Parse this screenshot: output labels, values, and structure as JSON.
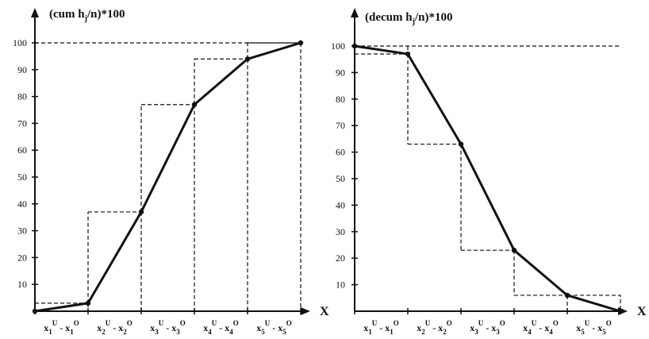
{
  "chart_data": [
    {
      "type": "line",
      "title": "(cum h",
      "title_sub": "j",
      "title_rest": "/n)*100",
      "xlabel": "X",
      "x_tick_labels": [
        {
          "base": "x",
          "sub": "1",
          "sup": "U",
          "sep": " - ",
          "base2": "x",
          "sub2": "1",
          "sup2": "O"
        },
        {
          "base": "x",
          "sub": "2",
          "sup": "U",
          "sep": " - ",
          "base2": "x",
          "sub2": "2",
          "sup2": "O"
        },
        {
          "base": "x",
          "sub": "3",
          "sup": "U",
          "sep": " - ",
          "base2": "x",
          "sub2": "3",
          "sup2": "O"
        },
        {
          "base": "x",
          "sub": "4",
          "sup": "U",
          "sep": " - ",
          "base2": "x",
          "sub2": "4",
          "sup2": "O"
        },
        {
          "base": "x",
          "sub": "5",
          "sup": "U",
          "sep": " - ",
          "base2": "x",
          "sub2": "5",
          "sup2": "O"
        }
      ],
      "y_ticks": [
        10,
        20,
        30,
        40,
        50,
        60,
        70,
        80,
        90,
        100
      ],
      "ylim": [
        0,
        110
      ],
      "line": {
        "x": [
          0,
          1,
          2,
          3,
          4,
          5
        ],
        "y": [
          0,
          3,
          37,
          77,
          94,
          100
        ]
      },
      "step": {
        "y": [
          3,
          37,
          77,
          94,
          100
        ]
      },
      "reference_y": 100
    },
    {
      "type": "line",
      "title": "(decum h",
      "title_sub": "j",
      "title_rest": "/n)*100",
      "xlabel": "X",
      "x_tick_labels": [
        {
          "base": "x",
          "sub": "1",
          "sup": "U",
          "sep": " - ",
          "base2": "x",
          "sub2": "1",
          "sup2": "O"
        },
        {
          "base": "x",
          "sub": "2",
          "sup": "U",
          "sep": " - ",
          "base2": "x",
          "sub2": "2",
          "sup2": "O"
        },
        {
          "base": "x",
          "sub": "3",
          "sup": "U",
          "sep": " - ",
          "base2": "x",
          "sub2": "3",
          "sup2": "O"
        },
        {
          "base": "x",
          "sub": "4",
          "sup": "U",
          "sep": " - ",
          "base2": "x",
          "sub2": "4",
          "sup2": "O"
        },
        {
          "base": "x",
          "sub": "5",
          "sup": "U",
          "sep": " - ",
          "base2": "x",
          "sub2": "5",
          "sup2": "O"
        }
      ],
      "y_ticks": [
        10,
        20,
        30,
        40,
        50,
        60,
        70,
        80,
        90,
        100
      ],
      "ylim": [
        0,
        110
      ],
      "line": {
        "x": [
          0,
          1,
          2,
          3,
          4,
          5
        ],
        "y": [
          100,
          97,
          63,
          23,
          6,
          0
        ]
      },
      "step": {
        "y": [
          97,
          63,
          23,
          6
        ]
      },
      "reference_y": 100
    }
  ]
}
